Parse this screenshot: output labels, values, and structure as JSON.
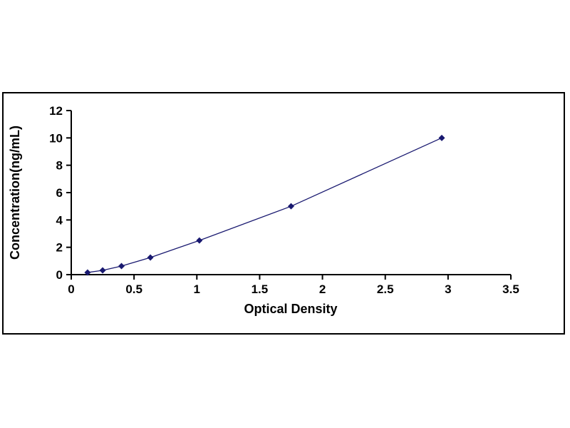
{
  "page": {
    "background_color": "#ffffff",
    "frame_border_color": "#000000"
  },
  "chart_data": {
    "type": "line",
    "title": "",
    "xlabel": "Optical Density",
    "ylabel": "Concentration(ng/mL)",
    "x": [
      0.13,
      0.25,
      0.4,
      0.63,
      1.02,
      1.75,
      2.95
    ],
    "y": [
      0.156,
      0.312,
      0.625,
      1.25,
      2.5,
      5,
      10
    ],
    "xlim": [
      0,
      3.5
    ],
    "ylim": [
      0,
      12
    ],
    "xticks": [
      "0",
      "0.5",
      "1",
      "1.5",
      "2",
      "2.5",
      "3",
      "3.5"
    ],
    "yticks": [
      "0",
      "2",
      "4",
      "6",
      "8",
      "10",
      "12"
    ],
    "grid": false,
    "legend": null,
    "marker": "diamond",
    "line_color": "#191970",
    "marker_color": "#191970",
    "axis_color": "#000000"
  }
}
